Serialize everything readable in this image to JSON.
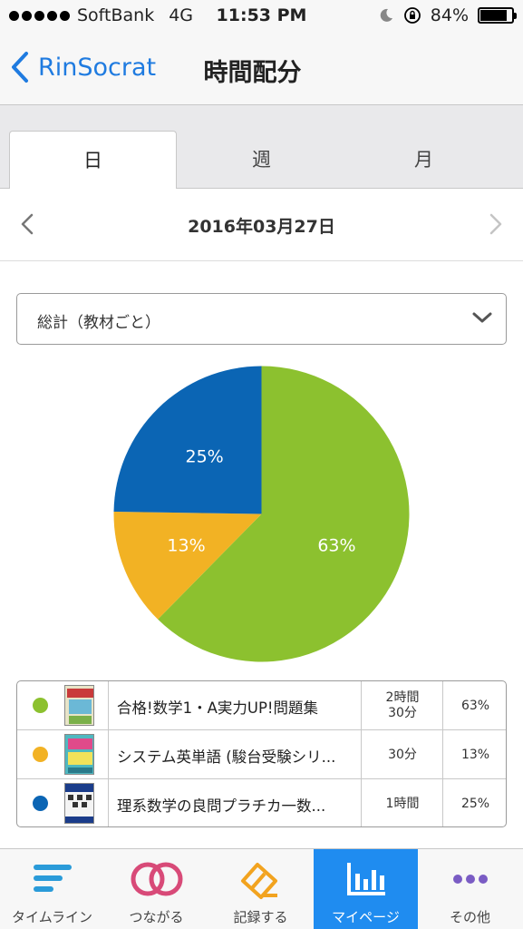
{
  "status_bar": {
    "carrier": "SoftBank",
    "network": "4G",
    "time": "11:53 PM",
    "battery": "84%",
    "battery_level": 0.84
  },
  "nav": {
    "back_label": "RinSocrat",
    "title": "時間配分"
  },
  "tabs": [
    {
      "label": "日",
      "active": true
    },
    {
      "label": "週",
      "active": false
    },
    {
      "label": "月",
      "active": false
    }
  ],
  "date": "2016年03月27日",
  "select": {
    "value": "総計（教材ごと）"
  },
  "chart_data": {
    "type": "pie",
    "slices": [
      {
        "label": "合格!数学1・A実力UP!問題集",
        "value": 63,
        "color": "#8cc12f"
      },
      {
        "label": "システム英単語 (駿台受験シリ...",
        "value": 13,
        "color": "#f2b224"
      },
      {
        "label": "理系数学の良問プラチカ一数...",
        "value": 25,
        "color": "#0b65b4"
      }
    ],
    "data_labels": [
      "63%",
      "13%",
      "25%"
    ]
  },
  "legend": [
    {
      "name": "合格!数学1・A実力UP!問題集",
      "time_line1": "2時間",
      "time_line2": "30分",
      "pct": "63%",
      "color": "#8cc12f"
    },
    {
      "name": "システム英単語 (駿台受験シリ...",
      "time_line1": "30分",
      "time_line2": "",
      "pct": "13%",
      "color": "#f2b224"
    },
    {
      "name": "理系数学の良問プラチカ一数...",
      "time_line1": "1時間",
      "time_line2": "",
      "pct": "25%",
      "color": "#0b65b4"
    }
  ],
  "tab_bar": [
    {
      "label": "タイムライン",
      "icon": "timeline-icon",
      "active": false
    },
    {
      "label": "つながる",
      "icon": "connect-icon",
      "active": false
    },
    {
      "label": "記録する",
      "icon": "record-icon",
      "active": false
    },
    {
      "label": "マイページ",
      "icon": "mypage-chart-icon",
      "active": true
    },
    {
      "label": "その他",
      "icon": "more-icon",
      "active": false
    }
  ]
}
